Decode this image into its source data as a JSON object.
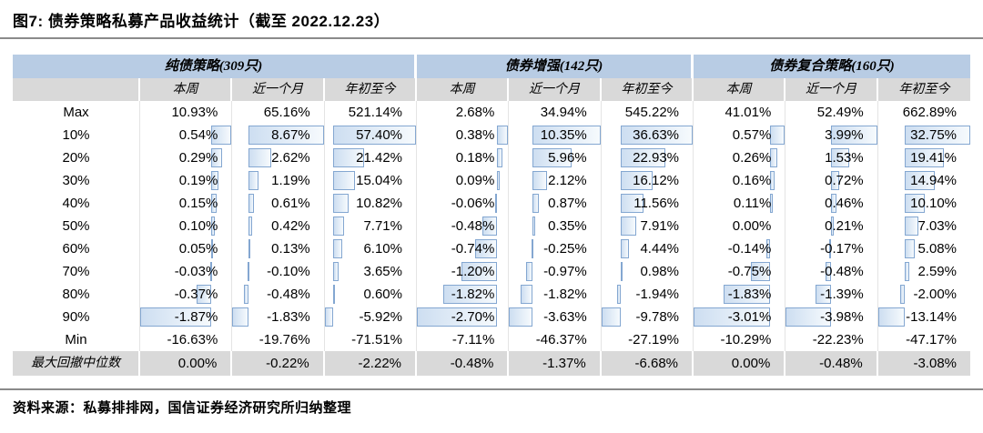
{
  "title": "图7: 债券策略私募产品收益统计（截至 2022.12.23）",
  "source": "资料来源：私募排排网，国信证券经济研究所归纳整理",
  "colors": {
    "group_band_blue": "#b8cce4",
    "header_gray": "#d9d9d9",
    "bar_border_blue": "#84a7d1",
    "bar_fill_blue": "#cddef1",
    "rule_gray": "#8a8a8a"
  },
  "table": {
    "groups": [
      {
        "label": "纯债策略(309只)"
      },
      {
        "label": "债券增强(142只)"
      },
      {
        "label": "债券复合策略(160只)"
      }
    ],
    "period_headers": [
      "本周",
      "近一个月",
      "年初至今"
    ],
    "rows": [
      {
        "label": "Max",
        "bars": false,
        "values": [
          "10.93%",
          "65.16%",
          "521.14%",
          "2.68%",
          "34.94%",
          "545.22%",
          "41.01%",
          "52.49%",
          "662.89%"
        ]
      },
      {
        "label": "10%",
        "bars": true,
        "values": [
          "0.54%",
          "8.67%",
          "57.40%",
          "0.38%",
          "10.35%",
          "36.63%",
          "0.57%",
          "3.99%",
          "32.75%"
        ]
      },
      {
        "label": "20%",
        "bars": true,
        "values": [
          "0.29%",
          "2.62%",
          "21.42%",
          "0.18%",
          "5.96%",
          "22.93%",
          "0.26%",
          "1.53%",
          "19.41%"
        ]
      },
      {
        "label": "30%",
        "bars": true,
        "values": [
          "0.19%",
          "1.19%",
          "15.04%",
          "0.09%",
          "2.12%",
          "16.12%",
          "0.16%",
          "0.72%",
          "14.94%"
        ]
      },
      {
        "label": "40%",
        "bars": true,
        "values": [
          "0.15%",
          "0.61%",
          "10.82%",
          "-0.06%",
          "0.87%",
          "11.56%",
          "0.11%",
          "0.46%",
          "10.10%"
        ]
      },
      {
        "label": "50%",
        "bars": true,
        "values": [
          "0.10%",
          "0.42%",
          "7.71%",
          "-0.48%",
          "0.35%",
          "7.91%",
          "0.00%",
          "0.21%",
          "7.03%"
        ]
      },
      {
        "label": "60%",
        "bars": true,
        "values": [
          "0.05%",
          "0.13%",
          "6.10%",
          "-0.74%",
          "-0.25%",
          "4.44%",
          "-0.14%",
          "-0.17%",
          "5.08%"
        ]
      },
      {
        "label": "70%",
        "bars": true,
        "values": [
          "-0.03%",
          "-0.10%",
          "3.65%",
          "-1.20%",
          "-0.97%",
          "0.98%",
          "-0.75%",
          "-0.48%",
          "2.59%"
        ]
      },
      {
        "label": "80%",
        "bars": true,
        "values": [
          "-0.37%",
          "-0.48%",
          "0.60%",
          "-1.82%",
          "-1.82%",
          "-1.94%",
          "-1.83%",
          "-1.39%",
          "-2.00%"
        ]
      },
      {
        "label": "90%",
        "bars": true,
        "values": [
          "-1.87%",
          "-1.83%",
          "-5.92%",
          "-2.70%",
          "-3.63%",
          "-9.78%",
          "-3.01%",
          "-3.98%",
          "-13.14%"
        ]
      },
      {
        "label": "Min",
        "bars": false,
        "values": [
          "-16.63%",
          "-19.76%",
          "-71.51%",
          "-7.11%",
          "-46.37%",
          "-27.19%",
          "-10.29%",
          "-22.23%",
          "-47.17%"
        ]
      }
    ],
    "drawdown_row": {
      "label": "最大回撤中位数",
      "values": [
        "0.00%",
        "-0.22%",
        "-2.22%",
        "-0.48%",
        "-1.37%",
        "-6.68%",
        "0.00%",
        "-0.48%",
        "-3.08%"
      ]
    }
  },
  "chart_data": {
    "type": "table",
    "title": "图7: 债券策略私募产品收益统计（截至 2022.12.23）",
    "column_groups": [
      "纯债策略(309只)",
      "债券增强(142只)",
      "债券复合策略(160只)"
    ],
    "columns_per_group": [
      "本周",
      "近一个月",
      "年初至今"
    ],
    "row_labels": [
      "Max",
      "10%",
      "20%",
      "30%",
      "40%",
      "50%",
      "60%",
      "70%",
      "80%",
      "90%",
      "Min",
      "最大回撤中位数"
    ],
    "values_pct": [
      [
        10.93,
        65.16,
        521.14,
        2.68,
        34.94,
        545.22,
        41.01,
        52.49,
        662.89
      ],
      [
        0.54,
        8.67,
        57.4,
        0.38,
        10.35,
        36.63,
        0.57,
        3.99,
        32.75
      ],
      [
        0.29,
        2.62,
        21.42,
        0.18,
        5.96,
        22.93,
        0.26,
        1.53,
        19.41
      ],
      [
        0.19,
        1.19,
        15.04,
        0.09,
        2.12,
        16.12,
        0.16,
        0.72,
        14.94
      ],
      [
        0.15,
        0.61,
        10.82,
        -0.06,
        0.87,
        11.56,
        0.11,
        0.46,
        10.1
      ],
      [
        0.1,
        0.42,
        7.71,
        -0.48,
        0.35,
        7.91,
        0.0,
        0.21,
        7.03
      ],
      [
        0.05,
        0.13,
        6.1,
        -0.74,
        -0.25,
        4.44,
        -0.14,
        -0.17,
        5.08
      ],
      [
        -0.03,
        -0.1,
        3.65,
        -1.2,
        -0.97,
        0.98,
        -0.75,
        -0.48,
        2.59
      ],
      [
        -0.37,
        -0.48,
        0.6,
        -1.82,
        -1.82,
        -1.94,
        -1.83,
        -1.39,
        -2.0
      ],
      [
        -1.87,
        -1.83,
        -5.92,
        -2.7,
        -3.63,
        -9.78,
        -3.01,
        -3.98,
        -13.14
      ],
      [
        -16.63,
        -19.76,
        -71.51,
        -7.11,
        -46.37,
        -27.19,
        -10.29,
        -22.23,
        -47.17
      ],
      [
        0.0,
        -0.22,
        -2.22,
        -0.48,
        -1.37,
        -6.68,
        0.0,
        -0.48,
        -3.08
      ]
    ],
    "databar_rows": [
      "10%",
      "20%",
      "30%",
      "40%",
      "50%",
      "60%",
      "70%",
      "80%",
      "90%"
    ]
  }
}
